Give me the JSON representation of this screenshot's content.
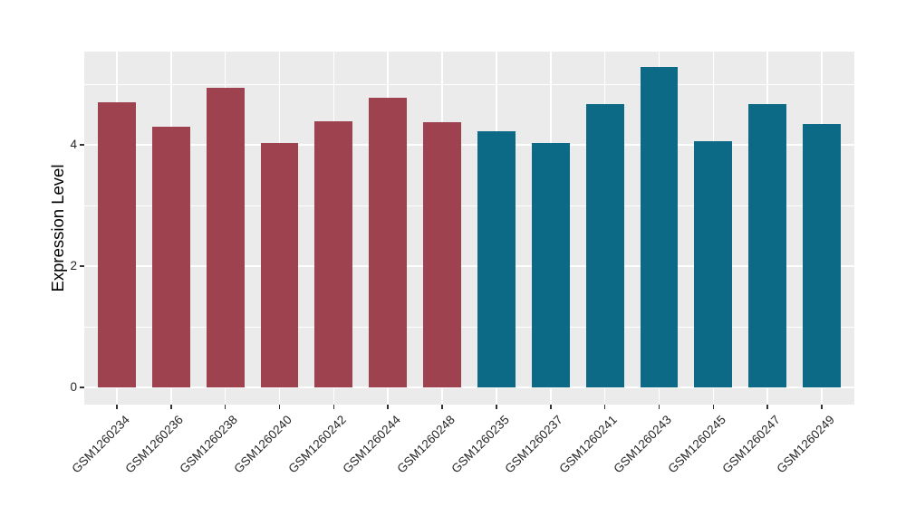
{
  "style": {
    "background": "#FFFFFF",
    "panel_background": "#EBEBEB",
    "gridline_color": "#FFFFFF",
    "axis_text_color": "#262626",
    "axis_title_color": "#000000",
    "tick_mark_color": "#333333"
  },
  "chart_data": {
    "type": "bar",
    "title": "",
    "xlabel": "",
    "ylabel": "Expression Level",
    "categories": [
      "GSM1260234",
      "GSM1260236",
      "GSM1260238",
      "GSM1260240",
      "GSM1260242",
      "GSM1260244",
      "GSM1260248",
      "GSM1260235",
      "GSM1260237",
      "GSM1260241",
      "GSM1260243",
      "GSM1260245",
      "GSM1260247",
      "GSM1260249"
    ],
    "values": [
      4.7,
      4.3,
      4.95,
      4.03,
      4.39,
      4.78,
      4.38,
      4.22,
      4.04,
      4.68,
      5.28,
      4.06,
      4.67,
      4.35
    ],
    "groups": [
      0,
      0,
      0,
      0,
      0,
      0,
      0,
      1,
      1,
      1,
      1,
      1,
      1,
      1
    ],
    "group_colors": [
      "#9E4250",
      "#0C6A87"
    ],
    "y_axis": {
      "major_ticks": [
        0,
        2,
        4
      ],
      "minor_ticks": [
        1,
        3,
        5
      ],
      "panel_min": -0.28,
      "panel_max": 5.54
    },
    "x_label_rotation_deg": 45,
    "bar_relative_width": 0.7,
    "discrete_expansion": 0.6,
    "grid": true,
    "legend": "none"
  }
}
